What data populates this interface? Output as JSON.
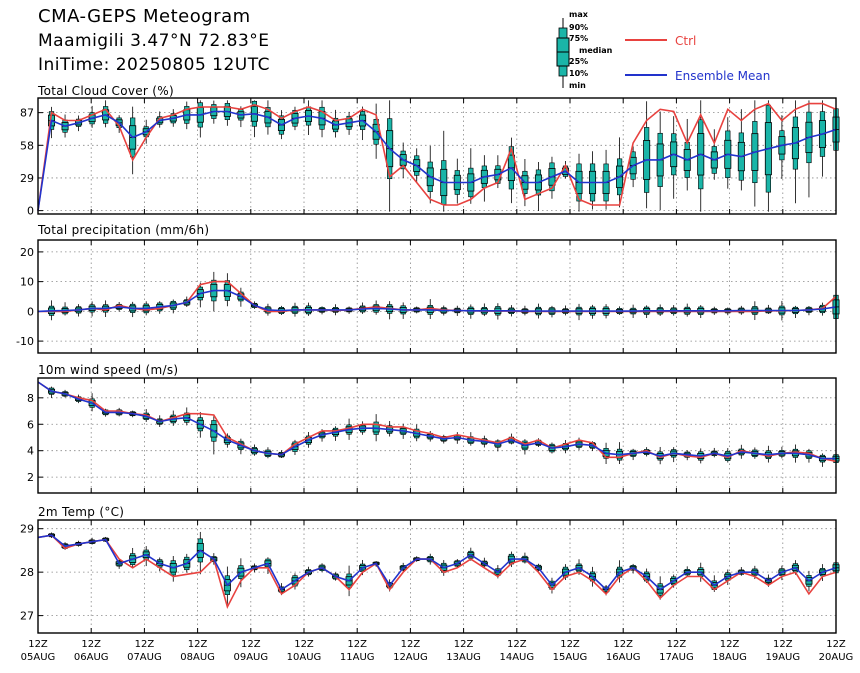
{
  "header": {
    "title": "CMA-GEPS Meteogram",
    "location": "Maamigili 3.47°N 72.83°E",
    "init_time": "IniTime: 20250805 12UTC"
  },
  "legend": {
    "box_labels": [
      "max",
      "90%",
      "75%",
      "median",
      "25%",
      "10%",
      "min"
    ],
    "ctrl_label": "Ctrl",
    "mean_label": "Ensemble Mean",
    "ctrl_color": "#e8423f",
    "mean_color": "#2233cc",
    "box_fill": "#1ab5a8"
  },
  "x_axis": {
    "tick_top": [
      "12Z",
      "12Z",
      "12Z",
      "12Z",
      "12Z",
      "12Z",
      "12Z",
      "12Z",
      "12Z",
      "12Z",
      "12Z",
      "12Z",
      "12Z",
      "12Z",
      "12Z",
      "12Z"
    ],
    "tick_bottom": [
      "05AUG",
      "06AUG",
      "07AUG",
      "08AUG",
      "09AUG",
      "10AUG",
      "11AUG",
      "12AUG",
      "13AUG",
      "14AUG",
      "15AUG",
      "16AUG",
      "17AUG",
      "18AUG",
      "19AUG",
      "20AUG"
    ]
  },
  "chart_data": [
    {
      "type": "box",
      "title": "Total Cloud Cover (%)",
      "yticks": [
        0,
        29,
        58,
        87
      ],
      "ylim": [
        -3,
        100
      ],
      "ctrl": [
        0,
        87,
        80,
        80,
        85,
        90,
        75,
        45,
        65,
        82,
        85,
        90,
        92,
        92,
        92,
        90,
        94,
        90,
        82,
        88,
        92,
        88,
        80,
        82,
        90,
        85,
        30,
        40,
        25,
        10,
        5,
        5,
        10,
        20,
        25,
        55,
        10,
        15,
        20,
        40,
        10,
        5,
        5,
        5,
        60,
        80,
        90,
        88,
        60,
        85,
        60,
        90,
        80,
        90,
        95,
        80,
        90,
        95,
        95,
        90
      ],
      "mean": [
        0,
        80,
        75,
        78,
        82,
        85,
        78,
        65,
        70,
        80,
        82,
        85,
        85,
        88,
        88,
        85,
        86,
        83,
        76,
        82,
        84,
        82,
        76,
        78,
        80,
        70,
        55,
        45,
        40,
        30,
        25,
        25,
        25,
        30,
        32,
        38,
        25,
        25,
        30,
        35,
        25,
        25,
        25,
        30,
        40,
        45,
        45,
        50,
        45,
        50,
        45,
        50,
        48,
        52,
        55,
        58,
        60,
        65,
        68,
        72
      ]
    },
    {
      "type": "box",
      "title": "Total precipitation (mm/6h)",
      "yticks": [
        -10,
        0,
        10,
        20
      ],
      "ylim": [
        -14,
        24
      ],
      "ctrl": [
        0,
        0,
        0,
        0.5,
        1,
        0.5,
        2,
        1,
        0.5,
        1,
        2,
        3,
        9,
        10,
        10,
        6,
        2,
        0,
        0,
        0.5,
        0.5,
        0.5,
        0.3,
        0.5,
        1,
        1.5,
        1,
        0.5,
        0.5,
        1,
        0.5,
        0.3,
        0.2,
        0.1,
        0.1,
        0.1,
        0,
        0,
        0,
        0,
        0,
        0,
        0,
        0,
        0,
        0,
        0,
        0,
        0,
        0,
        0,
        0,
        0,
        0,
        0.2,
        0.2,
        0.3,
        0.5,
        1,
        5
      ],
      "mean": [
        0,
        0.2,
        0.3,
        0.5,
        1,
        1,
        1.5,
        1,
        1,
        1.5,
        2,
        3,
        6,
        7,
        7,
        5,
        2,
        0.5,
        0.3,
        0.5,
        0.5,
        0.5,
        0.5,
        0.5,
        0.8,
        1,
        0.8,
        0.5,
        0.5,
        0.5,
        0.3,
        0.3,
        0.2,
        0.2,
        0.2,
        0.2,
        0.1,
        0.1,
        0.1,
        0.1,
        0.1,
        0.1,
        0.1,
        0.1,
        0.1,
        0.2,
        0.2,
        0.2,
        0.2,
        0.2,
        0.2,
        0.2,
        0.3,
        0.3,
        0.3,
        0.3,
        0.3,
        0.5,
        0.8,
        1.5
      ]
    },
    {
      "type": "box",
      "title": "10m wind speed (m/s)",
      "yticks": [
        2,
        4,
        6,
        8
      ],
      "ylim": [
        0.8,
        9.5
      ],
      "ctrl": [
        9.2,
        8.5,
        8.3,
        8.0,
        7.8,
        7.0,
        7.0,
        6.8,
        6.7,
        6.2,
        6.5,
        6.8,
        6.8,
        6.7,
        5.0,
        4.5,
        4.0,
        3.8,
        3.7,
        4.5,
        5.0,
        5.5,
        5.5,
        5.7,
        6.0,
        6.0,
        5.8,
        5.8,
        5.5,
        5.3,
        5.0,
        5.2,
        5.0,
        4.8,
        4.6,
        5.0,
        4.5,
        4.8,
        4.2,
        4.5,
        4.8,
        4.6,
        3.5,
        3.5,
        3.8,
        4.0,
        3.5,
        3.8,
        3.6,
        3.5,
        3.8,
        3.5,
        4.0,
        3.8,
        3.6,
        3.8,
        3.9,
        3.8,
        3.4,
        3.2
      ],
      "mean": [
        9.2,
        8.5,
        8.3,
        7.9,
        7.6,
        6.9,
        6.9,
        6.8,
        6.6,
        6.2,
        6.4,
        6.5,
        6.0,
        5.5,
        4.8,
        4.4,
        4.0,
        3.8,
        3.7,
        4.3,
        4.8,
        5.2,
        5.4,
        5.6,
        5.7,
        5.7,
        5.6,
        5.5,
        5.3,
        5.1,
        4.9,
        5.0,
        4.8,
        4.7,
        4.5,
        4.8,
        4.4,
        4.6,
        4.2,
        4.3,
        4.5,
        4.4,
        3.8,
        3.7,
        3.8,
        3.9,
        3.6,
        3.8,
        3.7,
        3.6,
        3.8,
        3.6,
        3.9,
        3.8,
        3.7,
        3.8,
        3.8,
        3.7,
        3.4,
        3.4
      ]
    },
    {
      "type": "box",
      "title": "2m Temp (°C)",
      "yticks": [
        27,
        28,
        29
      ],
      "ylim": [
        26.6,
        29.2
      ],
      "ctrl": [
        28.8,
        28.85,
        28.55,
        28.65,
        28.7,
        28.75,
        28.3,
        28.1,
        28.3,
        28.1,
        27.9,
        27.95,
        28.0,
        28.3,
        27.2,
        27.8,
        28.1,
        28.1,
        27.5,
        27.7,
        28.0,
        28.1,
        27.9,
        27.6,
        28.0,
        28.2,
        27.6,
        28.0,
        28.3,
        28.3,
        28.0,
        28.1,
        28.3,
        28.1,
        27.9,
        28.2,
        28.3,
        28.0,
        27.6,
        27.9,
        28.0,
        27.8,
        27.5,
        27.9,
        28.1,
        27.8,
        27.4,
        27.7,
        27.9,
        27.9,
        27.6,
        27.8,
        28.0,
        27.9,
        27.7,
        27.9,
        28.0,
        27.5,
        27.9,
        28.0
      ],
      "mean": [
        28.8,
        28.85,
        28.6,
        28.65,
        28.7,
        28.75,
        28.2,
        28.3,
        28.4,
        28.2,
        28.1,
        28.2,
        28.5,
        28.3,
        27.7,
        28.0,
        28.1,
        28.2,
        27.6,
        27.8,
        28.0,
        28.1,
        27.9,
        27.8,
        28.1,
        28.2,
        27.7,
        28.1,
        28.3,
        28.3,
        28.1,
        28.2,
        28.4,
        28.2,
        28.0,
        28.3,
        28.3,
        28.1,
        27.7,
        28.0,
        28.1,
        27.9,
        27.6,
        28.0,
        28.1,
        27.9,
        27.6,
        27.8,
        28.0,
        28.0,
        27.7,
        27.9,
        28.0,
        28.0,
        27.8,
        28.0,
        28.1,
        27.8,
        28.0,
        28.1
      ]
    }
  ]
}
